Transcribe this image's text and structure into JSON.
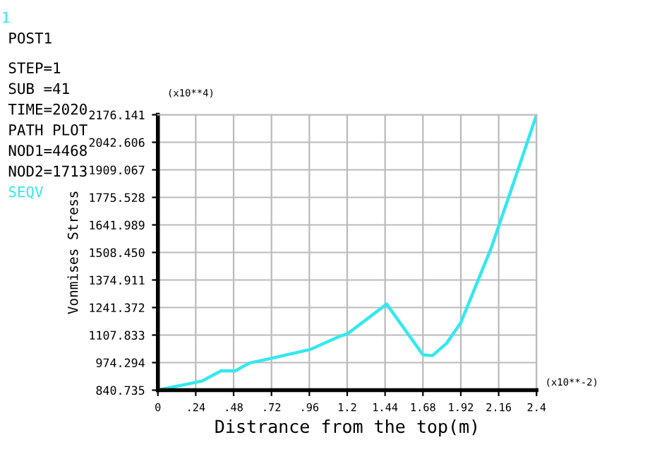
{
  "chart_data": {
    "type": "line",
    "xlabel": "Distrance from the top(m)",
    "ylabel": "Vonmises Stress",
    "annotations": [
      "1",
      "POST1",
      "STEP=1",
      "SUB =41",
      "TIME=2020",
      "PATH PLOT",
      "NOD1=4468",
      "NOD2=1713",
      "(x10**4)",
      "(x10**-2)"
    ],
    "x": [
      0,
      0.28,
      0.4,
      0.49,
      0.58,
      0.73,
      0.97,
      1.15,
      1.2,
      1.45,
      1.68,
      1.74,
      1.83,
      1.92,
      2.11,
      2.25,
      2.4
    ],
    "series": [
      {
        "name": "SEQV",
        "color": "#33e8f0",
        "values": [
          841,
          885,
          934,
          934,
          972,
          997,
          1039,
          1101,
          1113,
          1258,
          1012,
          1008,
          1068,
          1168,
          1525,
          1836,
          2176
        ]
      }
    ],
    "xlim": [
      0,
      2.4
    ],
    "ylim": [
      840.735,
      2176.141
    ],
    "xticks": [
      0,
      {
        "value": 0.24,
        "label": ".24"
      },
      {
        "value": 0.48,
        "label": ".48"
      },
      {
        "value": 0.72,
        "label": ".72"
      },
      {
        "value": 0.96,
        "label": ".96"
      },
      1.2,
      1.44,
      1.68,
      1.92,
      2.16,
      2.4
    ],
    "yticks": [
      840.735,
      {
        "value": 974.294,
        "label": "974.294"
      },
      {
        "value": 1107.833,
        "label": "1107.833"
      },
      {
        "value": 1241.372,
        "label": "1241.372"
      },
      {
        "value": 1374.911,
        "label": "1374.911"
      },
      {
        "value": 1508.45,
        "label": "1508.450"
      },
      {
        "value": 1641.989,
        "label": "1641.989"
      },
      {
        "value": 1775.528,
        "label": "1775.528"
      },
      {
        "value": 1909.067,
        "label": "1909.067"
      },
      {
        "value": 2042.606,
        "label": "2042.606"
      },
      {
        "value": 2176.141,
        "label": "2176.141"
      }
    ],
    "grid": true,
    "legend": "left",
    "line_style": "solid"
  }
}
